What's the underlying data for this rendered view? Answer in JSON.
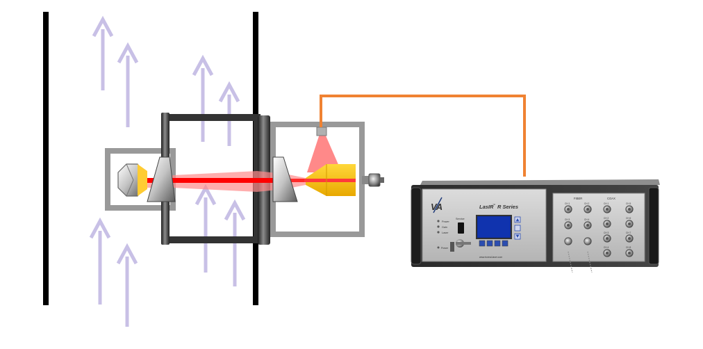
{
  "analyzer": {
    "logo_text": "VA",
    "model_brand": "LasIR",
    "model_mark": "™",
    "model_series": "R Series",
    "status_labels": [
      "Power",
      "Gain",
      "Laser"
    ],
    "key_label": "Service",
    "fiber_label": "FIBER",
    "coax_label": "COAX",
    "fiber_channels": [
      "CH 1",
      "CH 2",
      "CH 3",
      "CH 4"
    ],
    "coax_channels": [
      "CH 1",
      "CH 2",
      "CH 3",
      "CH 4",
      "CH 5",
      "CH 6",
      "CH 7",
      "CH 8"
    ],
    "front_port_label": "Power",
    "website": "www.boreal-laser.com"
  },
  "colors": {
    "flow_arrow": "#c8c0e6",
    "duct_wall": "#000000",
    "housing": "#999999",
    "flange": "#333333",
    "laser_beam": "#ff0000",
    "beam_glow": "#ff8080",
    "cable": "#f08232",
    "detector": "#ffcc00",
    "panel": "#c9c9c9",
    "lcd": "#0a2aa0"
  },
  "icons": [
    "flow-arrow-icon",
    "retroreflector-icon",
    "window-prism-icon",
    "detector-icon",
    "connector-icon"
  ]
}
